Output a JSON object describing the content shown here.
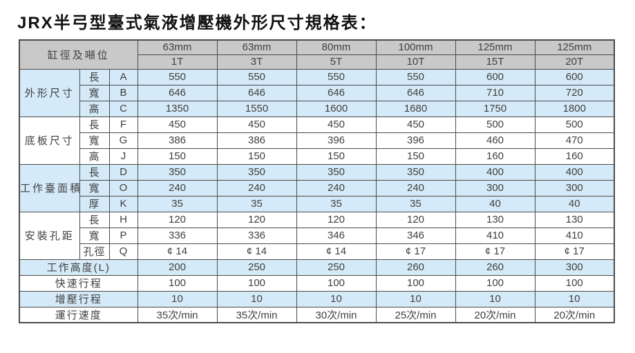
{
  "title": "JRX半弓型臺式氣液增壓機外形尺寸規格表：",
  "table": {
    "corner_label": "缸徑及噸位",
    "columns": [
      {
        "bore": "63mm",
        "tonnage": "1T"
      },
      {
        "bore": "63mm",
        "tonnage": "3T"
      },
      {
        "bore": "80mm",
        "tonnage": "5T"
      },
      {
        "bore": "100mm",
        "tonnage": "10T"
      },
      {
        "bore": "125mm",
        "tonnage": "15T"
      },
      {
        "bore": "125mm",
        "tonnage": "20T"
      }
    ],
    "groups": [
      {
        "name": "外形尺寸",
        "shade": "blue",
        "rows": [
          {
            "dim": "長",
            "code": "A",
            "values": [
              "550",
              "550",
              "550",
              "550",
              "600",
              "600"
            ]
          },
          {
            "dim": "寬",
            "code": "B",
            "values": [
              "646",
              "646",
              "646",
              "646",
              "710",
              "720"
            ]
          },
          {
            "dim": "高",
            "code": "C",
            "values": [
              "1350",
              "1550",
              "1600",
              "1680",
              "1750",
              "1800"
            ]
          }
        ]
      },
      {
        "name": "底板尺寸",
        "shade": "white",
        "rows": [
          {
            "dim": "長",
            "code": "F",
            "values": [
              "450",
              "450",
              "450",
              "450",
              "500",
              "500"
            ]
          },
          {
            "dim": "寬",
            "code": "G",
            "values": [
              "386",
              "386",
              "396",
              "396",
              "460",
              "470"
            ]
          },
          {
            "dim": "高",
            "code": "J",
            "values": [
              "150",
              "150",
              "150",
              "150",
              "160",
              "160"
            ]
          }
        ]
      },
      {
        "name": "工作臺面積",
        "shade": "blue",
        "rows": [
          {
            "dim": "長",
            "code": "D",
            "values": [
              "350",
              "350",
              "350",
              "350",
              "400",
              "400"
            ]
          },
          {
            "dim": "寬",
            "code": "O",
            "values": [
              "240",
              "240",
              "240",
              "240",
              "300",
              "300"
            ]
          },
          {
            "dim": "厚",
            "code": "K",
            "values": [
              "35",
              "35",
              "35",
              "35",
              "40",
              "40"
            ]
          }
        ]
      },
      {
        "name": "安裝孔距",
        "shade": "white",
        "rows": [
          {
            "dim": "長",
            "code": "H",
            "values": [
              "120",
              "120",
              "120",
              "120",
              "130",
              "130"
            ]
          },
          {
            "dim": "寬",
            "code": "P",
            "values": [
              "336",
              "336",
              "346",
              "346",
              "410",
              "410"
            ]
          },
          {
            "dim": "孔徑",
            "code": "Q",
            "values": [
              "¢ 14",
              "¢ 14",
              "¢ 14",
              "¢ 17",
              "¢ 17",
              "¢ 17"
            ]
          }
        ]
      }
    ],
    "footer_rows": [
      {
        "label": "工作高度(L)",
        "shade": "blue",
        "values": [
          "200",
          "250",
          "250",
          "260",
          "260",
          "300"
        ]
      },
      {
        "label": "快速行程",
        "shade": "white",
        "values": [
          "100",
          "100",
          "100",
          "100",
          "100",
          "100"
        ]
      },
      {
        "label": "增壓行程",
        "shade": "blue",
        "values": [
          "10",
          "10",
          "10",
          "10",
          "10",
          "10"
        ]
      },
      {
        "label": "運行速度",
        "shade": "white",
        "values": [
          "35次/min",
          "35次/min",
          "30次/min",
          "25次/min",
          "20次/min",
          "20次/min"
        ]
      }
    ]
  },
  "colors": {
    "header-bg": "#c9c9c9",
    "row-blue": "#d5eaf8",
    "row-white": "#ffffff",
    "border": "#4a4a4a",
    "text": "#3f3f3f",
    "title-text": "#111111"
  }
}
